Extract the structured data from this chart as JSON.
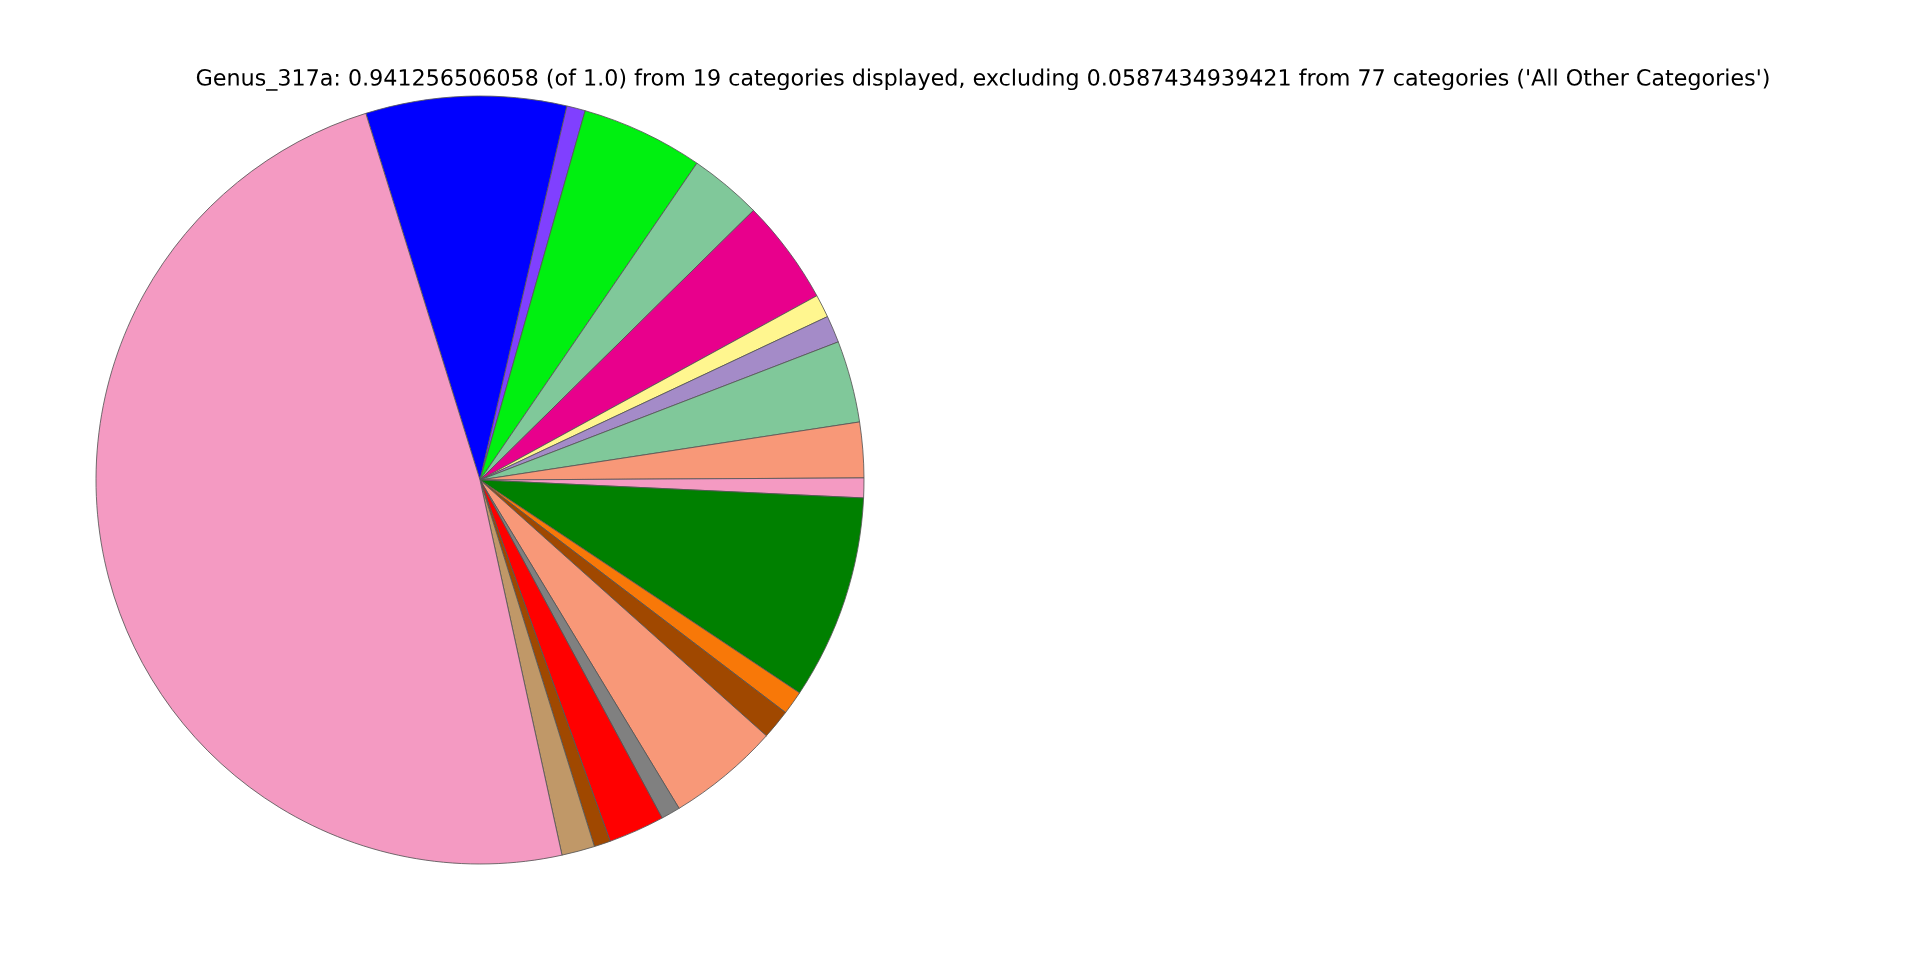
{
  "chart_data": {
    "type": "pie",
    "title": "Genus_317a: 0.941256506058 (of 1.0) from 19 categories displayed, excluding 0.0587434939421 from 77 categories ('All Other Categories')",
    "categories": [
      null,
      null,
      null,
      null,
      null,
      null,
      null,
      null,
      null,
      null,
      null,
      null,
      null,
      null,
      null,
      null,
      null,
      null,
      null
    ],
    "values": [
      8.44,
      0.78,
      5.14,
      3.06,
      4.42,
      0.97,
      1.14,
      3.44,
      2.33,
      0.83,
      8.61,
      1.0,
      1.25,
      4.72,
      0.81,
      2.36,
      0.69,
      1.39,
      48.62
    ],
    "colors": [
      "#0000ff",
      "#8040ff",
      "#00f010",
      "#80c89a",
      "#e8008c",
      "#fff68f",
      "#a48bc8",
      "#80c89a",
      "#f89878",
      "#f49ac2",
      "#008000",
      "#f87808",
      "#a04800",
      "#f89878",
      "#808080",
      "#ff0000",
      "#a04800",
      "#c09868",
      "#f49ac2"
    ]
  }
}
